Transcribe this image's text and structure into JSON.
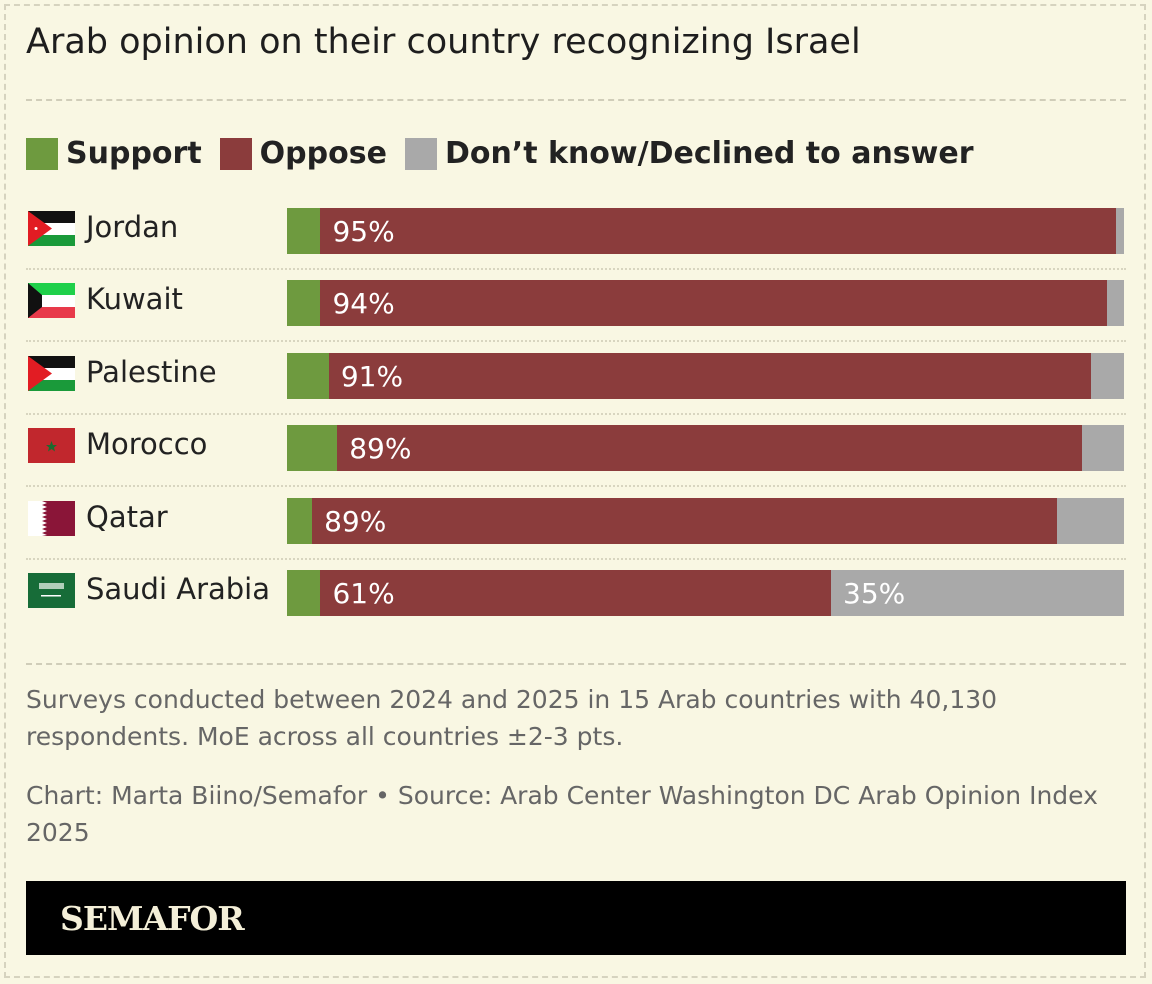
{
  "title": "Arab opinion on their country recognizing Israel",
  "legend": [
    {
      "label": "Support",
      "color": "#6e9a3f"
    },
    {
      "label": "Oppose",
      "color": "#8b3c3c"
    },
    {
      "label": "Don’t know/Declined to answer",
      "color": "#a9a9a9"
    }
  ],
  "chart_data": {
    "type": "bar",
    "orientation": "horizontal",
    "stacked": true,
    "xlim": [
      0,
      100
    ],
    "categories": [
      "Jordan",
      "Kuwait",
      "Palestine",
      "Morocco",
      "Qatar",
      "Saudi Arabia"
    ],
    "flags": [
      "jordan-flag-icon",
      "kuwait-flag-icon",
      "palestine-flag-icon",
      "morocco-flag-icon",
      "qatar-flag-icon",
      "saudi-arabia-flag-icon"
    ],
    "series": [
      {
        "name": "Support",
        "color": "#6e9a3f",
        "values": [
          4,
          4,
          5,
          6,
          3,
          4
        ],
        "labels": [
          "",
          "",
          "",
          "",
          "",
          ""
        ]
      },
      {
        "name": "Oppose",
        "color": "#8b3c3c",
        "values": [
          95,
          94,
          91,
          89,
          89,
          61
        ],
        "labels": [
          "95%",
          "94%",
          "91%",
          "89%",
          "89%",
          "61%"
        ]
      },
      {
        "name": "Don’t know/Declined to answer",
        "color": "#a9a9a9",
        "values": [
          1,
          2,
          4,
          5,
          8,
          35
        ],
        "labels": [
          "",
          "",
          "",
          "",
          "",
          "35%"
        ]
      }
    ]
  },
  "notes": {
    "description": "Surveys conducted between 2024 and 2025 in 15 Arab countries with 40,130 respondents. MoE across all countries ±2-3 pts.",
    "source": "Chart: Marta Biino/Semafor • Source: Arab Center Washington DC Arab Opinion Index 2025"
  },
  "footer": {
    "logo": "SEMAFOR"
  }
}
